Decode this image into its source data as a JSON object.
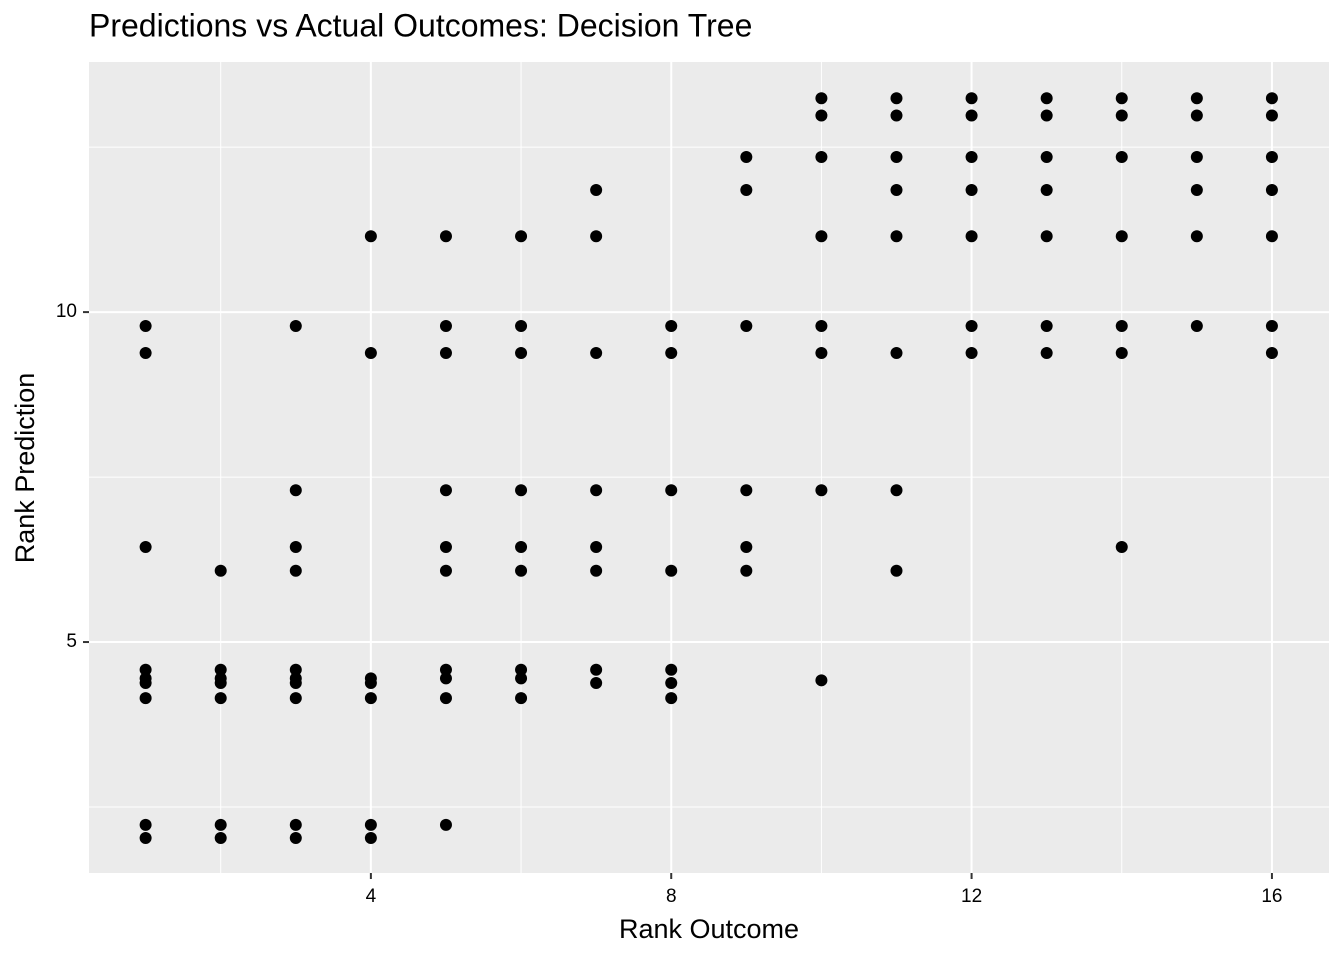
{
  "chart_data": {
    "type": "scatter",
    "title": "Predictions vs Actual Outcomes: Decision Tree",
    "x_label": "Rank Outcome",
    "y_label": "Rank Prediction",
    "x": [
      1,
      1,
      1,
      1,
      1,
      1,
      1,
      1,
      1,
      2,
      2,
      2,
      2,
      2,
      2,
      2,
      3,
      3,
      3,
      3,
      3,
      3,
      3,
      3,
      3,
      3,
      4,
      4,
      4,
      4,
      4,
      4,
      4,
      5,
      5,
      5,
      5,
      5,
      5,
      5,
      5,
      5,
      5,
      6,
      6,
      6,
      6,
      6,
      6,
      6,
      6,
      6,
      7,
      7,
      7,
      7,
      7,
      7,
      7,
      7,
      8,
      8,
      8,
      8,
      8,
      8,
      8,
      9,
      9,
      9,
      9,
      9,
      9,
      10,
      10,
      10,
      10,
      10,
      10,
      10,
      10,
      11,
      11,
      11,
      11,
      11,
      11,
      11,
      11,
      12,
      12,
      12,
      12,
      12,
      12,
      12,
      13,
      13,
      13,
      13,
      13,
      13,
      13,
      14,
      14,
      14,
      14,
      14,
      14,
      14,
      15,
      15,
      15,
      15,
      15,
      15,
      16,
      16,
      16,
      16,
      16,
      16,
      16
    ],
    "values": [
      9.79,
      9.38,
      6.44,
      4.58,
      4.45,
      4.38,
      4.15,
      2.23,
      2.03,
      6.08,
      4.58,
      4.45,
      4.38,
      4.15,
      2.23,
      2.03,
      9.79,
      7.3,
      6.44,
      6.08,
      4.58,
      4.45,
      4.38,
      4.15,
      2.23,
      2.03,
      11.15,
      9.38,
      4.45,
      4.38,
      4.15,
      2.23,
      2.03,
      11.15,
      9.79,
      9.38,
      7.3,
      6.44,
      6.08,
      4.58,
      4.45,
      4.15,
      2.23,
      11.15,
      9.79,
      9.38,
      7.3,
      6.44,
      6.08,
      4.58,
      4.45,
      4.15,
      11.85,
      11.15,
      9.38,
      7.3,
      6.44,
      6.08,
      4.58,
      4.38,
      9.79,
      9.38,
      7.3,
      6.08,
      4.58,
      4.38,
      4.15,
      12.35,
      11.85,
      9.79,
      7.3,
      6.44,
      6.08,
      13.24,
      12.98,
      12.35,
      11.15,
      9.79,
      9.38,
      7.3,
      4.42,
      13.24,
      12.98,
      12.35,
      11.85,
      11.15,
      9.38,
      7.3,
      6.08,
      13.24,
      12.98,
      12.35,
      11.85,
      11.15,
      9.79,
      9.38,
      13.24,
      12.98,
      12.35,
      11.85,
      11.15,
      9.79,
      9.38,
      13.24,
      12.98,
      12.35,
      11.15,
      9.79,
      9.38,
      6.44,
      13.24,
      12.98,
      12.35,
      11.85,
      11.15,
      9.79,
      13.24,
      12.98,
      12.35,
      11.85,
      11.15,
      9.79,
      9.38
    ],
    "color": "#000000",
    "xlim": [
      0.246,
      16.76
    ],
    "ylim": [
      1.5,
      13.79
    ],
    "xticks": [
      4,
      8,
      12,
      16
    ],
    "yticks": [
      5,
      10
    ],
    "minor_xticks": [
      2,
      6,
      10,
      14
    ],
    "minor_yticks": [
      2.5,
      7.5,
      12.5
    ],
    "grid": true
  }
}
